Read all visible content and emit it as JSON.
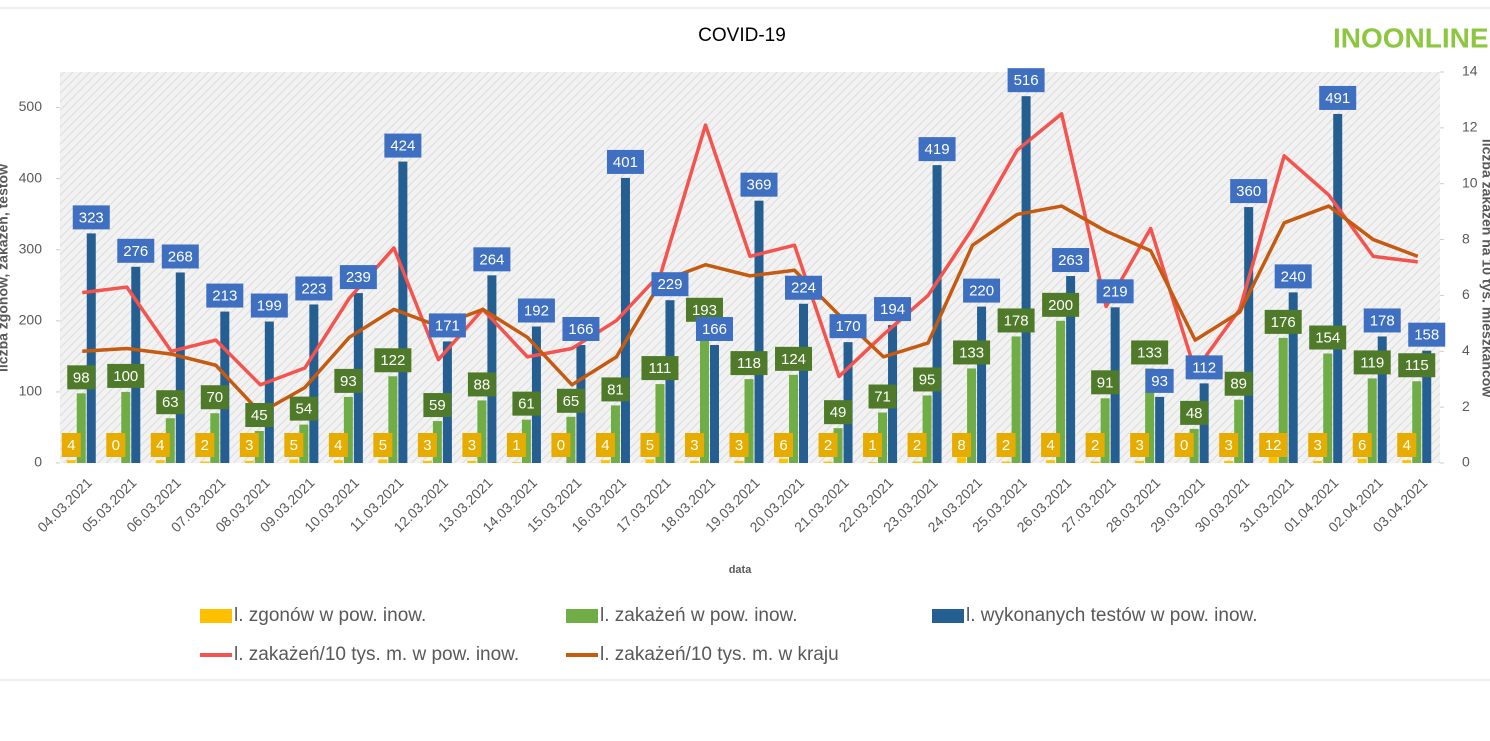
{
  "chart_data": {
    "type": "bar",
    "title": "COVID-19",
    "logo": "INOONLINE",
    "xlabel": "data",
    "ylabel": "liczba zgonów, zakażeń, testów",
    "y2label": "liczba zakażeń na 10 tys. mieszkańców",
    "categories": [
      "04.03.2021",
      "05.03.2021",
      "06.03.2021",
      "07.03.2021",
      "08.03.2021",
      "09.03.2021",
      "10.03.2021",
      "11.03.2021",
      "12.03.2021",
      "13.03.2021",
      "14.03.2021",
      "15.03.2021",
      "16.03.2021",
      "17.03.2021",
      "18.03.2021",
      "19.03.2021",
      "20.03.2021",
      "21.03.2021",
      "22.03.2021",
      "23.03.2021",
      "24.03.2021",
      "25.03.2021",
      "26.03.2021",
      "27.03.2021",
      "28.03.2021",
      "29.03.2021",
      "30.03.2021",
      "31.03.2021",
      "01.04.2021",
      "02.04.2021",
      "03.04.2021"
    ],
    "ylim": [
      0,
      550
    ],
    "yticks": [
      0,
      100,
      200,
      300,
      400,
      500
    ],
    "y2lim": [
      0,
      14
    ],
    "y2ticks": [
      0,
      2,
      4,
      6,
      8,
      10,
      12,
      14
    ],
    "legend": "bottom",
    "series": [
      {
        "name": "l. zgonów w pow. inow.",
        "type": "bar",
        "color": "#ffc000",
        "label_color": "#e6ad00",
        "values": [
          4,
          0,
          4,
          2,
          3,
          5,
          4,
          5,
          3,
          3,
          1,
          0,
          4,
          5,
          3,
          3,
          6,
          2,
          1,
          2,
          8,
          2,
          4,
          2,
          3,
          0,
          3,
          12,
          3,
          6,
          4
        ]
      },
      {
        "name": "l. zakażeń w pow. inow.",
        "type": "bar",
        "color": "#70ad47",
        "label_color": "#4e7a2a",
        "values": [
          98,
          100,
          63,
          70,
          45,
          54,
          93,
          122,
          59,
          88,
          61,
          65,
          81,
          111,
          193,
          118,
          124,
          49,
          71,
          95,
          133,
          178,
          200,
          91,
          133,
          48,
          89,
          176,
          154,
          119,
          115
        ]
      },
      {
        "name": "l. wykonanych testów w pow. inow.",
        "type": "bar",
        "color": "#255e91",
        "label_color": "#3f6fc0",
        "values": [
          323,
          276,
          268,
          213,
          199,
          223,
          239,
          424,
          171,
          264,
          192,
          166,
          401,
          229,
          166,
          369,
          224,
          170,
          194,
          419,
          220,
          516,
          263,
          219,
          93,
          112,
          360,
          240,
          491,
          178,
          158
        ]
      },
      {
        "name": "l. zakażeń/10 tys. m. w pow. inow.",
        "type": "line",
        "axis": "y2",
        "color": "#f4534e",
        "values": [
          6.1,
          6.3,
          4.0,
          4.4,
          2.8,
          3.4,
          5.9,
          7.7,
          3.7,
          5.5,
          3.8,
          4.1,
          5.1,
          6.8,
          12.1,
          7.4,
          7.8,
          3.1,
          4.6,
          6.0,
          8.4,
          11.2,
          12.5,
          5.6,
          8.4,
          3.3,
          5.5,
          11.0,
          9.6,
          7.4,
          7.2
        ]
      },
      {
        "name": "l. zakażeń/10 tys. m. w kraju",
        "type": "line",
        "axis": "y2",
        "color": "#c55a11",
        "values": [
          4.0,
          4.1,
          3.9,
          3.5,
          1.8,
          2.7,
          4.5,
          5.5,
          4.9,
          5.5,
          4.5,
          2.8,
          3.8,
          6.5,
          7.1,
          6.7,
          6.9,
          5.3,
          3.8,
          4.3,
          7.8,
          8.9,
          9.2,
          8.3,
          7.6,
          4.4,
          5.4,
          8.6,
          9.2,
          8.0,
          7.4
        ]
      }
    ]
  }
}
